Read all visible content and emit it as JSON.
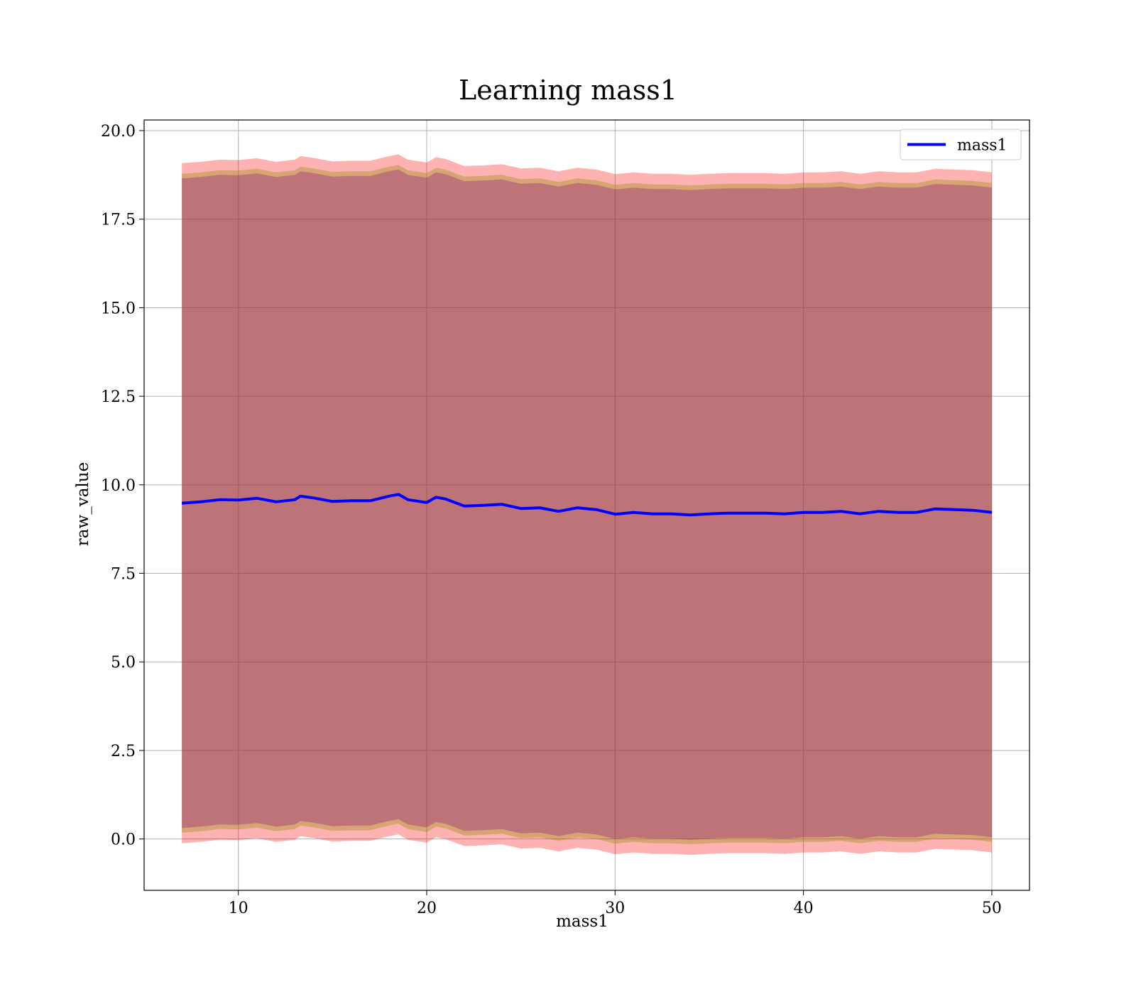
{
  "chart_data": {
    "type": "area",
    "title": "Learning mass1",
    "xlabel": "mass1",
    "ylabel": "raw_value",
    "xlim": [
      5,
      52
    ],
    "ylim": [
      -1.45,
      20.3
    ],
    "xticks": [
      10,
      20,
      30,
      40,
      50
    ],
    "yticks": [
      0.0,
      2.5,
      5.0,
      7.5,
      10.0,
      12.5,
      15.0,
      17.5,
      20.0
    ],
    "xtick_labels": [
      "10",
      "20",
      "30",
      "40",
      "50"
    ],
    "ytick_labels": [
      "0.0",
      "2.5",
      "5.0",
      "7.5",
      "10.0",
      "12.5",
      "15.0",
      "17.5",
      "20.0"
    ],
    "grid": true,
    "legend_position": "top-right",
    "x": [
      7.0,
      8.0,
      9.0,
      10.0,
      11.0,
      12.0,
      13.0,
      13.3,
      14.0,
      15.0,
      16.0,
      17.0,
      18.0,
      18.5,
      19.0,
      20.0,
      20.5,
      21.0,
      22.0,
      23.0,
      24.0,
      25.0,
      26.0,
      27.0,
      28.0,
      29.0,
      30.0,
      31.0,
      32.0,
      33.0,
      34.0,
      35.0,
      36.0,
      37.0,
      38.0,
      39.0,
      40.0,
      41.0,
      42.0,
      43.0,
      44.0,
      45.0,
      46.0,
      47.0,
      48.0,
      49.0,
      50.0
    ],
    "mean": [
      9.48,
      9.52,
      9.58,
      9.57,
      9.62,
      9.52,
      9.58,
      9.68,
      9.63,
      9.53,
      9.55,
      9.55,
      9.68,
      9.73,
      9.58,
      9.5,
      9.65,
      9.6,
      9.4,
      9.42,
      9.45,
      9.33,
      9.35,
      9.25,
      9.35,
      9.3,
      9.17,
      9.22,
      9.18,
      9.18,
      9.15,
      9.18,
      9.2,
      9.2,
      9.2,
      9.18,
      9.22,
      9.22,
      9.25,
      9.18,
      9.25,
      9.22,
      9.22,
      9.32,
      9.3,
      9.28,
      9.22
    ],
    "series": [
      {
        "name": "mass1",
        "color": "#0000ff",
        "values_key": "mean"
      }
    ],
    "bands": [
      {
        "color": "#ff0000",
        "alpha": 0.3,
        "offset": 9.6
      },
      {
        "color": "#8b8b00",
        "alpha": 0.35,
        "offset": 9.3
      },
      {
        "color": "#800080",
        "alpha": 0.3,
        "offset": 9.17
      }
    ],
    "band_color_note": "overlapping translucent red, olive and purple bands around the mean"
  }
}
